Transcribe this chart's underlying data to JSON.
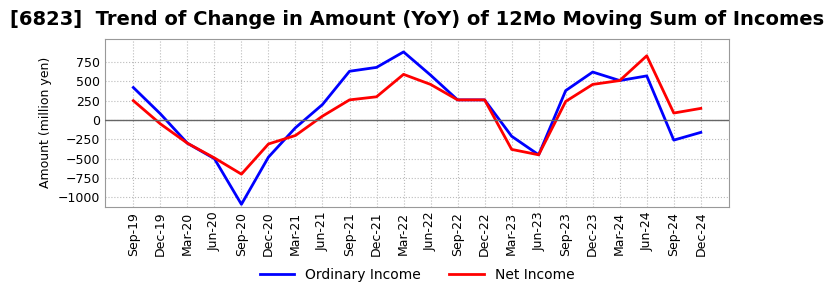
{
  "title": "[6823]  Trend of Change in Amount (YoY) of 12Mo Moving Sum of Incomes",
  "ylabel": "Amount (million yen)",
  "x_labels": [
    "Sep-19",
    "Dec-19",
    "Mar-20",
    "Jun-20",
    "Sep-20",
    "Dec-20",
    "Mar-21",
    "Jun-21",
    "Sep-21",
    "Dec-21",
    "Mar-22",
    "Jun-22",
    "Sep-22",
    "Dec-22",
    "Mar-23",
    "Jun-23",
    "Sep-23",
    "Dec-23",
    "Mar-24",
    "Jun-24",
    "Sep-24",
    "Dec-24"
  ],
  "ordinary_income": [
    420,
    80,
    -300,
    -500,
    -1090,
    -480,
    -100,
    200,
    630,
    680,
    880,
    580,
    260,
    260,
    -210,
    -450,
    380,
    620,
    510,
    570,
    -260,
    -160
  ],
  "net_income": [
    250,
    -50,
    -300,
    -490,
    -700,
    -310,
    -200,
    50,
    260,
    300,
    590,
    460,
    260,
    260,
    -380,
    -450,
    240,
    460,
    510,
    830,
    90,
    150
  ],
  "ordinary_income_color": "#0000ff",
  "net_income_color": "#ff0000",
  "ylim": [
    -1120,
    1050
  ],
  "yticks": [
    -1000,
    -750,
    -500,
    -250,
    0,
    250,
    500,
    750
  ],
  "background_color": "#ffffff",
  "plot_bg_color": "#ffffff",
  "grid_color": "#bbbbbb",
  "zero_line_color": "#666666",
  "title_fontsize": 14,
  "axis_label_fontsize": 9,
  "tick_fontsize": 9,
  "legend_fontsize": 10,
  "line_width": 2.0
}
